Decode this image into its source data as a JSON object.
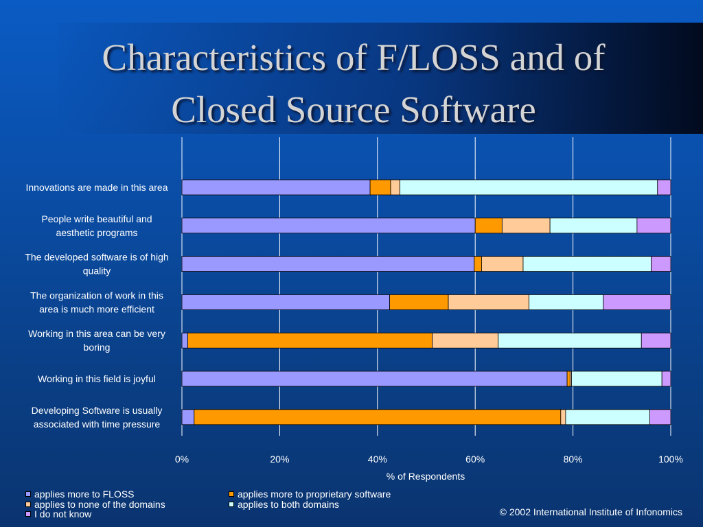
{
  "slide": {
    "title_line1": "Characteristics of F/LOSS and of",
    "title_line2": "Closed Source Software",
    "copyright": "© 2002 International Institute of Infonomics"
  },
  "colors": {
    "floss": "#9999ff",
    "proprietary": "#ff9900",
    "none": "#ffcc99",
    "both": "#ccffff",
    "dont_know": "#cc99ff",
    "gridline": "#ffffff",
    "background": "#0a4ea8"
  },
  "chart_data": {
    "type": "bar",
    "orientation": "horizontal",
    "stacked": "100%",
    "categories": [
      "Innovations are made in this area",
      "People write beautiful and aesthetic programs",
      "The developed software is of high quality",
      "The organization of work in this area is much more efficient",
      "Working in this area can be very boring",
      "Working in this field is joyful",
      "Developing Software is usually associated with time pressure"
    ],
    "category_lines": [
      [
        "Innovations are made in this area"
      ],
      [
        "People write beautiful and",
        "aesthetic programs"
      ],
      [
        "The developed software is of high",
        "quality"
      ],
      [
        "The organization of work in this",
        "area is much more efficient"
      ],
      [
        "Working in this area can be very",
        "boring"
      ],
      [
        "Working in this field is joyful"
      ],
      [
        "Developing Software is usually",
        "associated with time pressure"
      ]
    ],
    "series": [
      {
        "name": "applies more to FLOSS",
        "color_key": "floss",
        "values": [
          38.5,
          60,
          59.8,
          42.5,
          1.2,
          78.8,
          2.5
        ]
      },
      {
        "name": "applies more to proprietary software",
        "color_key": "proprietary",
        "values": [
          4.2,
          5.5,
          1.5,
          12,
          50,
          0.6,
          75
        ]
      },
      {
        "name": "applies to none of the domains",
        "color_key": "none",
        "values": [
          1.9,
          9.8,
          8.5,
          16.5,
          13.5,
          0.3,
          1
        ]
      },
      {
        "name": "applies to both domains",
        "color_key": "both",
        "values": [
          52.7,
          17.8,
          26.2,
          15.2,
          29.3,
          18.5,
          17.2
        ]
      },
      {
        "name": "I do not know",
        "color_key": "dont_know",
        "values": [
          2.7,
          6.9,
          4,
          13.8,
          6,
          1.8,
          4.3
        ]
      }
    ],
    "xlabel": "% of Respondents",
    "xlim": [
      0,
      100
    ],
    "xticks": [
      "0%",
      "20%",
      "40%",
      "60%",
      "80%",
      "100%"
    ],
    "grid": true,
    "legend_position": "bottom-left"
  }
}
